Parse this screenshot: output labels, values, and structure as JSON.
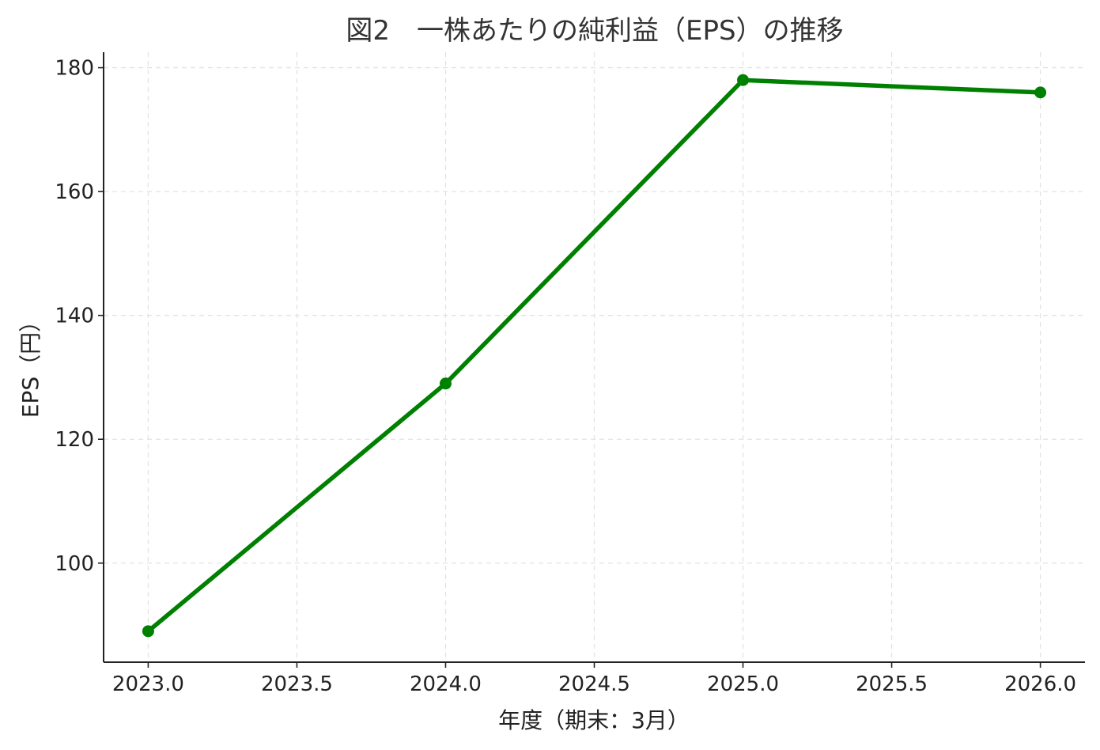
{
  "chart_data": {
    "type": "line",
    "title": "図2　一株あたりの純利益（EPS）の推移",
    "xlabel": "年度（期末：3月）",
    "ylabel": "EPS（円）",
    "x": [
      2023,
      2024,
      2025,
      2026
    ],
    "series": [
      {
        "values": [
          89,
          129,
          178,
          176
        ],
        "color": "#008000"
      }
    ],
    "xlim": [
      2022.85,
      2026.15
    ],
    "ylim": [
      84,
      182.5
    ],
    "xticks": [
      "2023.0",
      "2023.5",
      "2024.0",
      "2024.5",
      "2025.0",
      "2025.5",
      "2026.0"
    ],
    "xtick_values": [
      2023.0,
      2023.5,
      2024.0,
      2024.5,
      2025.0,
      2025.5,
      2026.0
    ],
    "yticks": [
      "100",
      "120",
      "140",
      "160",
      "180"
    ],
    "ytick_values": [
      100,
      120,
      140,
      160,
      180
    ],
    "grid": true,
    "marker": "circle"
  }
}
